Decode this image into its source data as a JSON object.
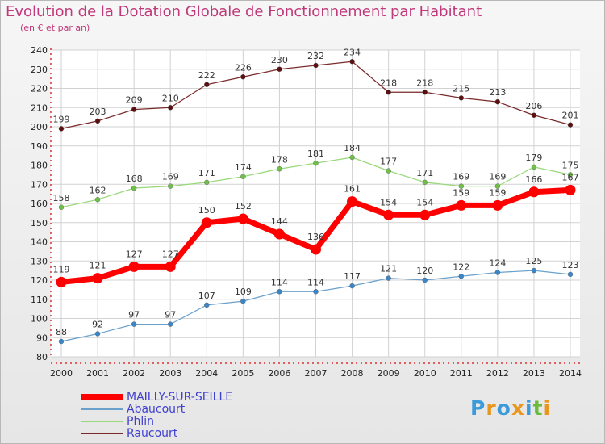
{
  "title": "Evolution de la Dotation Globale de Fonctionnement par Habitant",
  "subtitle": "(en € et par an)",
  "logo": {
    "text": "Proxiti",
    "letters": [
      "P",
      "r",
      "o",
      "x",
      "i",
      "t",
      "i"
    ],
    "colors": [
      "#3b9ad9",
      "#e8961e",
      "#3b9ad9",
      "#e8961e",
      "#3b9ad9",
      "#6dbb3a",
      "#e8961e"
    ]
  },
  "chart_data": {
    "type": "line",
    "title": "Evolution de la Dotation Globale de Fonctionnement par Habitant",
    "ylabel": "(en € et par an)",
    "xlabel": "",
    "x": [
      "2000",
      "2001",
      "2002",
      "2003",
      "2004",
      "2005",
      "2006",
      "2007",
      "2008",
      "2009",
      "2010",
      "2011",
      "2012",
      "2013",
      "2014"
    ],
    "ylim": [
      80,
      240
    ],
    "yticks": [
      80,
      90,
      100,
      110,
      120,
      130,
      140,
      150,
      160,
      170,
      180,
      190,
      200,
      210,
      220,
      230,
      240
    ],
    "grid": true,
    "legend": "bottom-left",
    "series": [
      {
        "name": "Raucourt",
        "color": "#7a2a2a",
        "marker": "#5a1010",
        "width": 1.2,
        "values": [
          199,
          203,
          209,
          210,
          222,
          226,
          230,
          232,
          234,
          218,
          218,
          215,
          213,
          206,
          201
        ]
      },
      {
        "name": "Phlin",
        "color": "#98d878",
        "marker": "#6fbf4a",
        "width": 1.2,
        "values": [
          158,
          162,
          168,
          169,
          171,
          174,
          178,
          181,
          184,
          177,
          171,
          169,
          169,
          179,
          175
        ]
      },
      {
        "name": "Abaucourt",
        "color": "#6aa0cc",
        "marker": "#3a86c8",
        "width": 1.2,
        "values": [
          88,
          92,
          97,
          97,
          107,
          109,
          114,
          114,
          117,
          121,
          120,
          122,
          124,
          125,
          123
        ]
      },
      {
        "name": "MAILLY-SUR-SEILLE",
        "color": "#ff0000",
        "marker": "#ff0000",
        "width": 7,
        "values": [
          119,
          121,
          127,
          127,
          150,
          152,
          144,
          136,
          161,
          154,
          154,
          159,
          159,
          166,
          167
        ]
      }
    ]
  },
  "legend_items": [
    {
      "name": "MAILLY-SUR-SEILLE",
      "color": "#ff0000",
      "height": 8
    },
    {
      "name": "Abaucourt",
      "color": "#6aa0cc",
      "height": 2
    },
    {
      "name": "Phlin",
      "color": "#98d878",
      "height": 2
    },
    {
      "name": "Raucourt",
      "color": "#7a2a2a",
      "height": 2
    }
  ],
  "legend_text_color": "#4040d0"
}
